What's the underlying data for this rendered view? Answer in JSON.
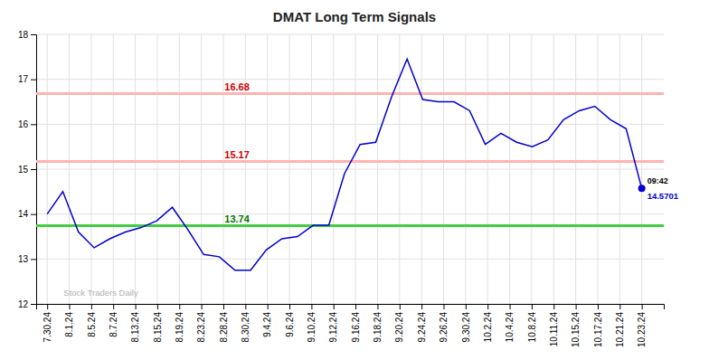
{
  "chart_data": {
    "type": "line",
    "title": "DMAT Long Term Signals",
    "x": [
      0,
      0.7105263158,
      1.4210526316,
      2.1315789474,
      2.8421052632,
      3.5526315789,
      4.2631578947,
      4.9736842105,
      5.6842105263,
      6.3947368421,
      7.1052631579,
      7.8157894737,
      8.5263157895,
      9.2368421053,
      9.9473684211,
      10.6578947368,
      11.3684210526,
      12.0789473684,
      12.7894736842,
      13.5,
      14.2105263158,
      14.9210526316,
      15.6315789474,
      16.3421052632,
      17.0526315789,
      17.7631578947,
      18.4736842105,
      19.1842105263,
      19.8947368421,
      20.6052631579,
      21.3157894737,
      22.0263157895,
      22.7368421053,
      23.4473684211,
      24.1578947368,
      24.8684210526,
      25.5789473684,
      26.2894736842,
      27
    ],
    "values": [
      14.0,
      14.5,
      13.6,
      13.25,
      13.45,
      13.6,
      13.7,
      13.85,
      14.15,
      13.65,
      13.1,
      13.05,
      12.75,
      12.75,
      13.2,
      13.45,
      13.5,
      13.75,
      13.75,
      14.9,
      15.55,
      15.6,
      16.6,
      17.45,
      16.55,
      16.5,
      16.5,
      16.3,
      15.55,
      15.8,
      15.6,
      15.5,
      15.65,
      16.1,
      16.3,
      16.4,
      16.1,
      15.9,
      14.5701
    ],
    "color": "#0000cc",
    "xlim": [
      -0.5,
      28
    ],
    "xticks": [
      {
        "value": 0,
        "label": "7.30.24"
      },
      {
        "value": 1,
        "label": "8.1.24"
      },
      {
        "value": 2,
        "label": "8.5.24"
      },
      {
        "value": 3,
        "label": "8.7.24"
      },
      {
        "value": 4,
        "label": "8.13.24"
      },
      {
        "value": 5,
        "label": "8.15.24"
      },
      {
        "value": 6,
        "label": "8.19.24"
      },
      {
        "value": 7,
        "label": "8.23.24"
      },
      {
        "value": 8,
        "label": "8.28.24"
      },
      {
        "value": 9,
        "label": "8.30.24"
      },
      {
        "value": 10,
        "label": "9.4.24"
      },
      {
        "value": 11,
        "label": "9.6.24"
      },
      {
        "value": 12,
        "label": "9.10.24"
      },
      {
        "value": 13,
        "label": "9.12.24"
      },
      {
        "value": 14,
        "label": "9.16.24"
      },
      {
        "value": 15,
        "label": "9.18.24"
      },
      {
        "value": 16,
        "label": "9.20.24"
      },
      {
        "value": 17,
        "label": "9.24.24"
      },
      {
        "value": 18,
        "label": "9.26.24"
      },
      {
        "value": 19,
        "label": "9.30.24"
      },
      {
        "value": 20,
        "label": "10.2.24"
      },
      {
        "value": 21,
        "label": "10.4.24"
      },
      {
        "value": 22,
        "label": "10.8.24"
      },
      {
        "value": 23,
        "label": "10.11.24"
      },
      {
        "value": 24,
        "label": "10.15.24"
      },
      {
        "value": 25,
        "label": "10.17.24"
      },
      {
        "value": 26,
        "label": "10.21.24"
      },
      {
        "value": 27,
        "label": "10.23.24"
      }
    ],
    "ylim": [
      12,
      18
    ],
    "yticks": [
      12,
      13,
      14,
      15,
      16,
      17,
      18
    ],
    "grid": true,
    "hlines": [
      {
        "y": 16.68,
        "color": "#ffb3b3",
        "label_color": "#cc0000"
      },
      {
        "y": 15.17,
        "color": "#ffb3b3",
        "label_color": "#cc0000"
      },
      {
        "y": 13.74,
        "color": "#44cc44",
        "label_color": "#007700"
      }
    ],
    "annotations": [
      {
        "x": 27,
        "y": 14.5701,
        "text": "09:42"
      },
      {
        "x": 0.5,
        "y": 12.08,
        "text": "Stock Traders Daily",
        "color": "#b0b0b0"
      }
    ]
  }
}
